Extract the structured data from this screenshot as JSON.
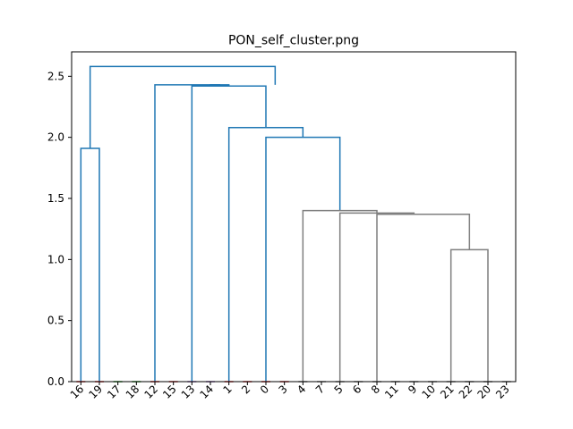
{
  "chart_data": {
    "type": "dendrogram",
    "title": "PON_self_cluster.png",
    "xlabel": "",
    "ylabel": "",
    "ylim": [
      0,
      2.7
    ],
    "yticks": [
      0.0,
      0.5,
      1.0,
      1.5,
      2.0,
      2.5
    ],
    "ytick_labels": [
      "0.0",
      "0.5",
      "1.0",
      "1.5",
      "2.0",
      "2.5"
    ],
    "leaf_labels": [
      "16",
      "19",
      "17",
      "18",
      "12",
      "15",
      "13",
      "14",
      "1",
      "2",
      "0",
      "3",
      "4",
      "7",
      "5",
      "6",
      "8",
      "11",
      "9",
      "10",
      "21",
      "22",
      "20",
      "23"
    ],
    "colors": {
      "cluster_blue": "#1f77b4",
      "cluster_gray": "#7f7f7f",
      "leaf_red": "#d62728",
      "leaf_green": "#2ca02c",
      "leaf_purple": "#9467bd"
    },
    "links": [
      {
        "x": [
          0,
          0,
          1,
          1
        ],
        "y": [
          0,
          1.91,
          1.91,
          0
        ],
        "color": "cluster_blue"
      },
      {
        "x": [
          0.5,
          0.5,
          10.5,
          10.5
        ],
        "y": [
          1.91,
          2.58,
          2.58,
          2.43
        ],
        "color": "cluster_blue"
      },
      {
        "x": [
          4,
          4,
          7.5,
          7.5
        ],
        "y": [
          0,
          2.43,
          2.43,
          2.42
        ],
        "color": "cluster_blue"
      },
      {
        "x": [
          7,
          7,
          8,
          8
        ],
        "y": [
          2.42,
          2.43,
          2.43,
          2.42
        ],
        "color": "cluster_blue"
      },
      {
        "x": [
          6,
          6,
          10,
          10
        ],
        "y": [
          0,
          2.42,
          2.42,
          2.08
        ],
        "color": "cluster_blue"
      },
      {
        "x": [
          8,
          8,
          12,
          12
        ],
        "y": [
          0,
          2.08,
          2.08,
          2.0
        ],
        "color": "cluster_blue"
      },
      {
        "x": [
          10,
          10,
          14,
          14
        ],
        "y": [
          0,
          2.0,
          2.0,
          1.4
        ],
        "color": "cluster_blue"
      },
      {
        "x": [
          12,
          12,
          16,
          16
        ],
        "y": [
          0,
          1.4,
          1.4,
          1.38
        ],
        "color": "cluster_gray"
      },
      {
        "x": [
          14,
          14,
          18,
          18
        ],
        "y": [
          0,
          1.38,
          1.38,
          1.37
        ],
        "color": "cluster_gray"
      },
      {
        "x": [
          16,
          16,
          21,
          21
        ],
        "y": [
          0,
          1.37,
          1.37,
          1.08
        ],
        "color": "cluster_gray"
      },
      {
        "x": [
          20,
          20,
          22,
          22
        ],
        "y": [
          0,
          1.08,
          1.08,
          0
        ],
        "color": "cluster_gray"
      }
    ],
    "leaf_marks": [
      {
        "x": 0,
        "color": "leaf_red"
      },
      {
        "x": 1,
        "color": "leaf_red"
      },
      {
        "x": 2,
        "color": "leaf_green"
      },
      {
        "x": 3,
        "color": "leaf_green"
      },
      {
        "x": 4,
        "color": "leaf_red"
      },
      {
        "x": 5,
        "color": "leaf_red"
      },
      {
        "x": 6,
        "color": "leaf_purple"
      },
      {
        "x": 7,
        "color": "leaf_purple"
      },
      {
        "x": 8,
        "color": "leaf_red"
      },
      {
        "x": 9,
        "color": "leaf_red"
      },
      {
        "x": 10,
        "color": "leaf_red"
      },
      {
        "x": 11,
        "color": "leaf_red"
      },
      {
        "x": 12,
        "color": "cluster_gray"
      },
      {
        "x": 13,
        "color": "cluster_gray"
      },
      {
        "x": 14,
        "color": "cluster_gray"
      },
      {
        "x": 15,
        "color": "cluster_gray"
      },
      {
        "x": 16,
        "color": "cluster_gray"
      },
      {
        "x": 17,
        "color": "cluster_gray"
      },
      {
        "x": 18,
        "color": "cluster_gray"
      },
      {
        "x": 19,
        "color": "cluster_gray"
      },
      {
        "x": 20,
        "color": "cluster_gray"
      },
      {
        "x": 21,
        "color": "cluster_gray"
      },
      {
        "x": 22,
        "color": "cluster_gray"
      },
      {
        "x": 23,
        "color": "cluster_gray"
      }
    ]
  }
}
